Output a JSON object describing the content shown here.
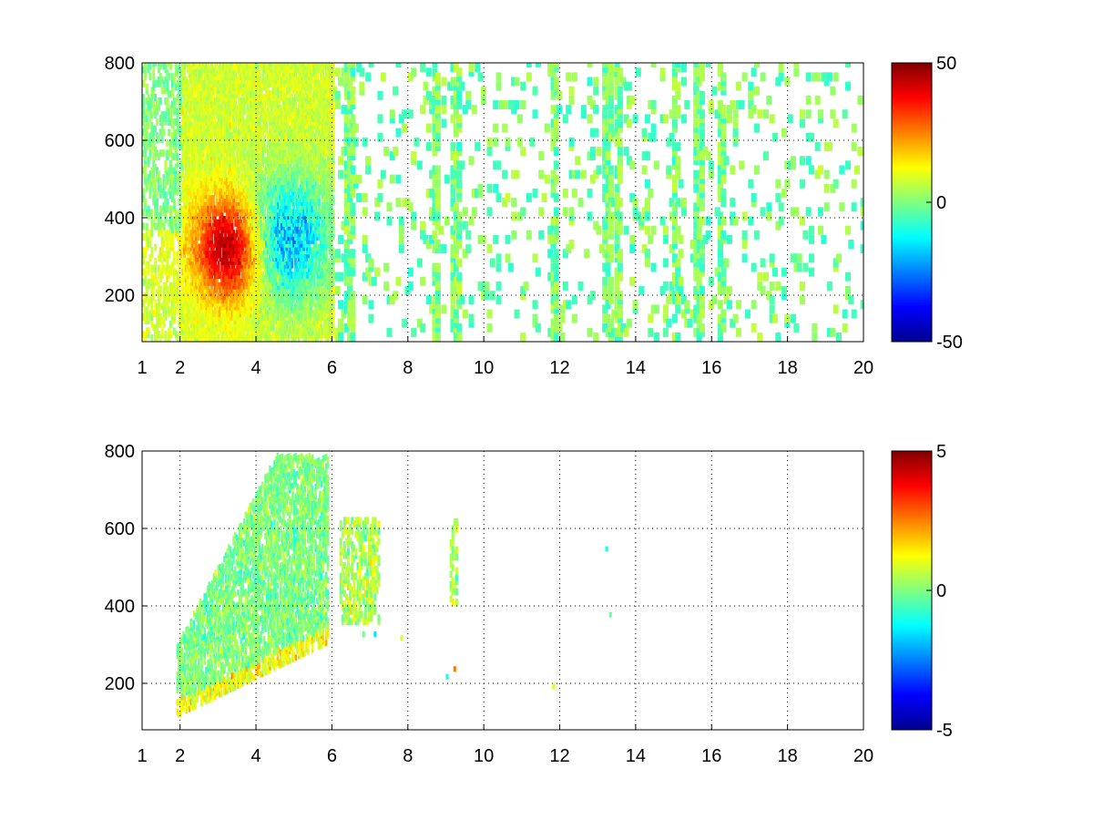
{
  "chart_data": [
    {
      "type": "heatmap",
      "title": "",
      "xlabel": "",
      "ylabel": "",
      "xlim": [
        1,
        20
      ],
      "ylim": [
        80,
        800
      ],
      "xticks": [
        1,
        2,
        4,
        6,
        8,
        10,
        12,
        14,
        16,
        18,
        20
      ],
      "yticks": [
        200,
        400,
        600,
        800
      ],
      "grid": "dotted",
      "colormap": "jet",
      "colorbar": {
        "min": -50,
        "max": 50,
        "ticks": [
          50,
          0,
          -50
        ]
      },
      "features": {
        "dense_region_x": [
          1,
          6
        ],
        "sparse_region_x": [
          6,
          20
        ],
        "positive_core": {
          "x": [
            2.5,
            4.0
          ],
          "y": [
            230,
            400
          ],
          "peak": 40
        },
        "negative_core": {
          "x": [
            3.8,
            5.8
          ],
          "y": [
            180,
            500
          ],
          "trough": -30
        },
        "strong_columns_x": [
          2.0,
          4.5,
          6.4,
          8.7,
          9.2,
          11.8,
          13.2,
          13.5,
          15.0,
          15.6,
          16.2
        ]
      }
    },
    {
      "type": "heatmap",
      "title": "",
      "xlabel": "",
      "ylabel": "",
      "xlim": [
        1,
        20
      ],
      "ylim": [
        80,
        800
      ],
      "xticks": [
        1,
        2,
        4,
        6,
        8,
        10,
        12,
        14,
        16,
        18,
        20
      ],
      "yticks": [
        200,
        400,
        600,
        800
      ],
      "grid": "dotted",
      "colormap": "jet",
      "colorbar": {
        "min": -5,
        "max": 5,
        "ticks": [
          5,
          0,
          -5
        ]
      },
      "features": {
        "dense_band": {
          "x": [
            1.9,
            5.9
          ],
          "y_low_at_x_start": 110,
          "y_low_at_x_end": 300,
          "y_top": 780
        },
        "clusters": [
          {
            "x": [
              6.2,
              7.2
            ],
            "y": [
              350,
              620
            ]
          },
          {
            "x": [
              9.1,
              9.3
            ],
            "y": [
              400,
              610
            ]
          }
        ],
        "isolated_points": [
          {
            "x": 6.8,
            "y": 320
          },
          {
            "x": 7.1,
            "y": 320
          },
          {
            "x": 7.8,
            "y": 310
          },
          {
            "x": 9.2,
            "y": 230
          },
          {
            "x": 9.0,
            "y": 210
          },
          {
            "x": 11.8,
            "y": 185
          },
          {
            "x": 13.2,
            "y": 540
          },
          {
            "x": 13.3,
            "y": 370
          }
        ]
      }
    }
  ]
}
